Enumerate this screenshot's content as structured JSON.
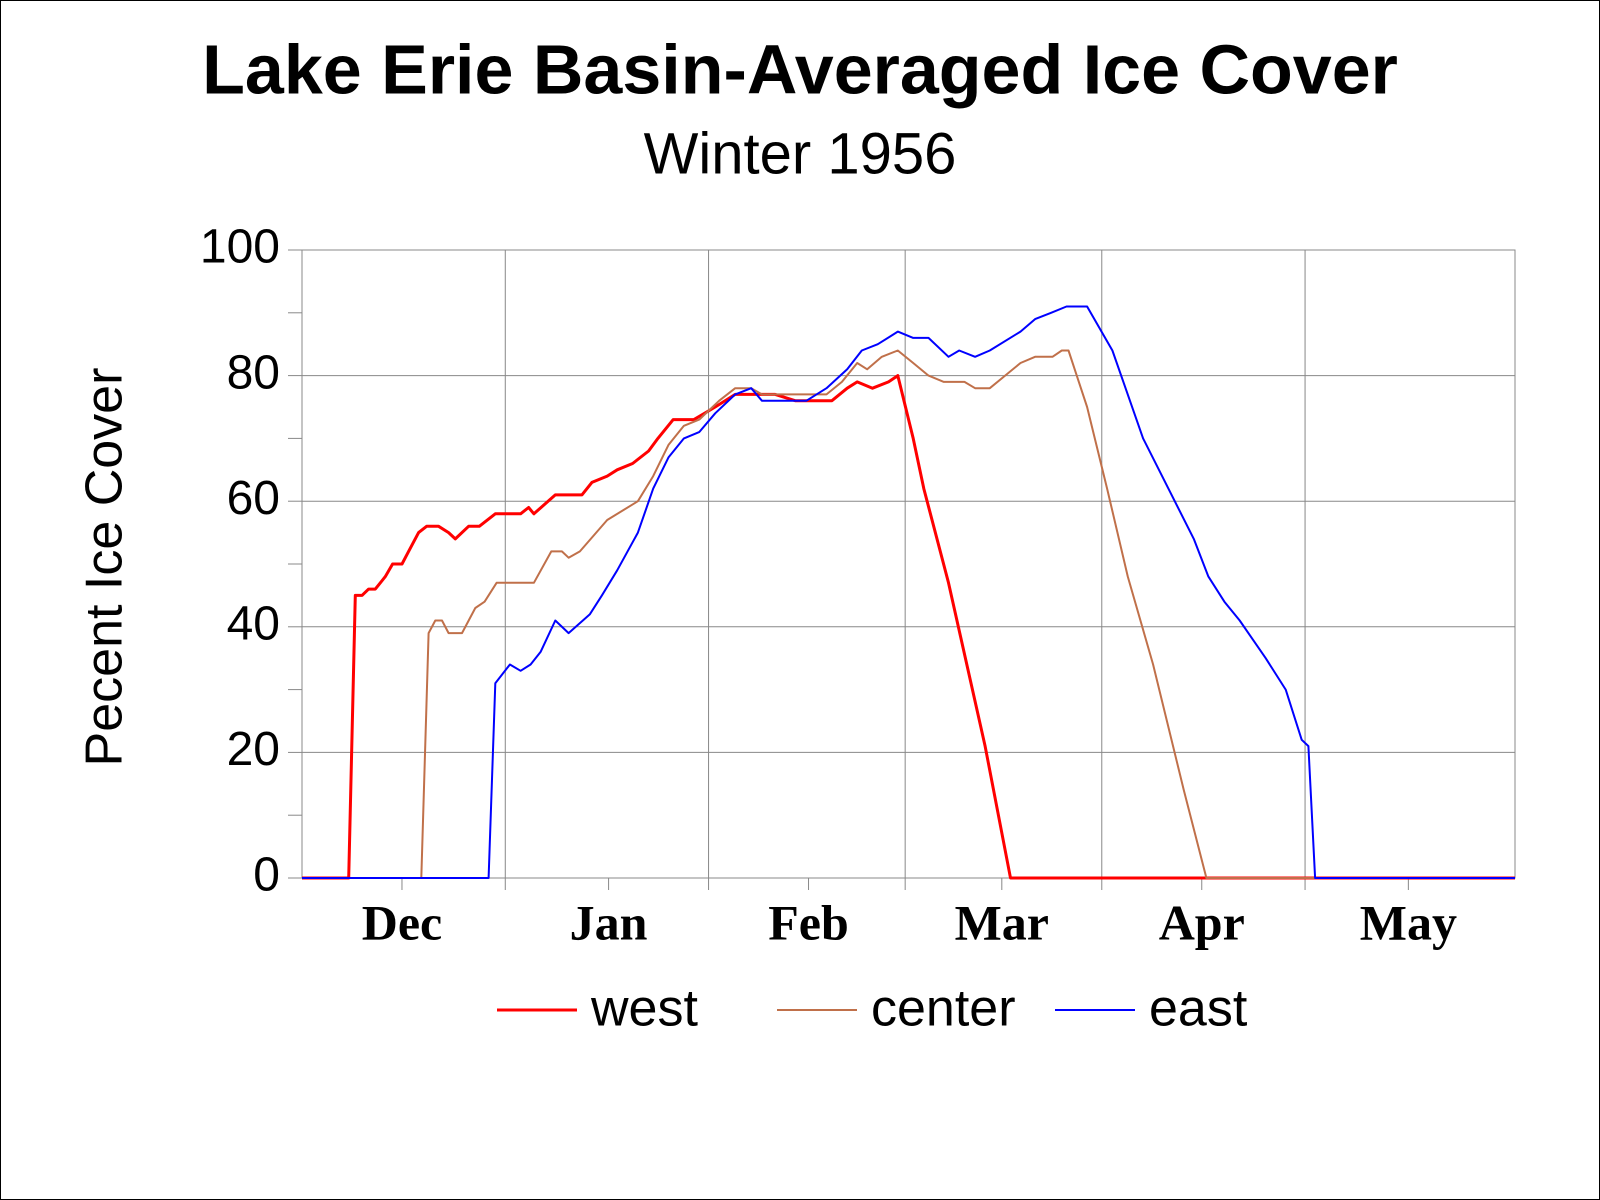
{
  "chart_data": {
    "type": "line",
    "title": "Lake Erie Basin-Averaged Ice Cover",
    "subtitle": "Winter 1956",
    "y_label": "Pecent Ice Cover",
    "xlim": [
      0,
      182
    ],
    "xticks": [
      {
        "value": 15,
        "label": "Dec"
      },
      {
        "value": 46,
        "label": "Jan"
      },
      {
        "value": 76,
        "label": "Feb"
      },
      {
        "value": 105,
        "label": "Mar"
      },
      {
        "value": 135,
        "label": "Apr"
      },
      {
        "value": 166,
        "label": "May"
      }
    ],
    "ylim": [
      0,
      100
    ],
    "yticks": [
      0,
      20,
      40,
      60,
      80,
      100
    ],
    "grid": true,
    "legend": "bottom",
    "series": [
      {
        "name": "west",
        "color": "#ff0000",
        "width": 3,
        "x": [
          0,
          7,
          8,
          9,
          10,
          11,
          12.5,
          13.6,
          15,
          16,
          17.5,
          18.7,
          20.5,
          22,
          23,
          25,
          26.6,
          29,
          32.8,
          34,
          34.8,
          38,
          42,
          43.5,
          45.8,
          47.3,
          49.6,
          52,
          53.4,
          55.7,
          58.8,
          62,
          65,
          68,
          71,
          74,
          77,
          79.5,
          81.8,
          83.3,
          85.6,
          88,
          89.4,
          91.7,
          93.3,
          97,
          102.5,
          106.3,
          182
        ],
        "values": [
          0,
          0,
          45,
          45,
          46,
          46,
          48,
          50,
          50,
          52,
          55,
          56,
          56,
          55,
          54,
          56,
          56,
          58,
          58,
          59,
          58,
          61,
          61,
          63,
          64,
          65,
          66,
          68,
          70,
          73,
          73,
          75,
          77,
          77,
          77,
          76,
          76,
          76,
          78,
          79,
          78,
          79,
          80,
          70,
          62,
          47,
          21,
          0,
          0
        ]
      },
      {
        "name": "center",
        "color": "#c0704a",
        "width": 2,
        "x": [
          0,
          17.9,
          19,
          20,
          21,
          22,
          24,
          26,
          27.4,
          29.2,
          31,
          34.8,
          37.4,
          39,
          40,
          41.7,
          45.8,
          50.4,
          52.7,
          55,
          57.3,
          59.6,
          62.6,
          65,
          67.4,
          69,
          73.4,
          75.7,
          78.7,
          81,
          83.3,
          84.8,
          87,
          89.4,
          91.7,
          94,
          96.3,
          99.4,
          101,
          103.2,
          107.8,
          110,
          112.6,
          114,
          115,
          117.8,
          120.8,
          123.9,
          127.7,
          132.3,
          135.7,
          182
        ],
        "values": [
          0,
          0,
          39,
          41,
          41,
          39,
          39,
          43,
          44,
          47,
          47,
          47,
          52,
          52,
          51,
          52,
          57,
          60,
          64,
          69,
          72,
          73,
          76,
          78,
          78,
          77,
          77,
          77,
          77,
          79,
          82,
          81,
          83,
          84,
          82,
          80,
          79,
          79,
          78,
          78,
          82,
          83,
          83,
          84,
          84,
          75,
          62,
          48,
          34,
          14,
          0,
          0
        ]
      },
      {
        "name": "east",
        "color": "#0000ff",
        "width": 2,
        "x": [
          0,
          28,
          29,
          31.2,
          32.8,
          34.3,
          35.8,
          38,
          40,
          43.2,
          45,
          47.3,
          50.4,
          52.7,
          55,
          57.3,
          59.6,
          62,
          65,
          67.4,
          69,
          72.6,
          75.7,
          78.7,
          81.8,
          84,
          86.4,
          89.4,
          91.7,
          94,
          97,
          98.6,
          101,
          103.2,
          107.8,
          110,
          112.4,
          114.7,
          117.8,
          121.6,
          126.2,
          130,
          133.8,
          136,
          138.4,
          140.7,
          144.6,
          147.6,
          150,
          151,
          152,
          182
        ],
        "values": [
          0,
          0,
          31,
          34,
          33,
          34,
          36,
          41,
          39,
          42,
          45,
          49,
          55,
          62,
          67,
          70,
          71,
          74,
          77,
          78,
          76,
          76,
          76,
          78,
          81,
          84,
          85,
          87,
          86,
          86,
          83,
          84,
          83,
          84,
          87,
          89,
          90,
          91,
          91,
          84,
          70,
          62,
          54,
          48,
          44,
          41,
          35,
          30,
          22,
          21,
          0,
          0
        ]
      }
    ]
  }
}
